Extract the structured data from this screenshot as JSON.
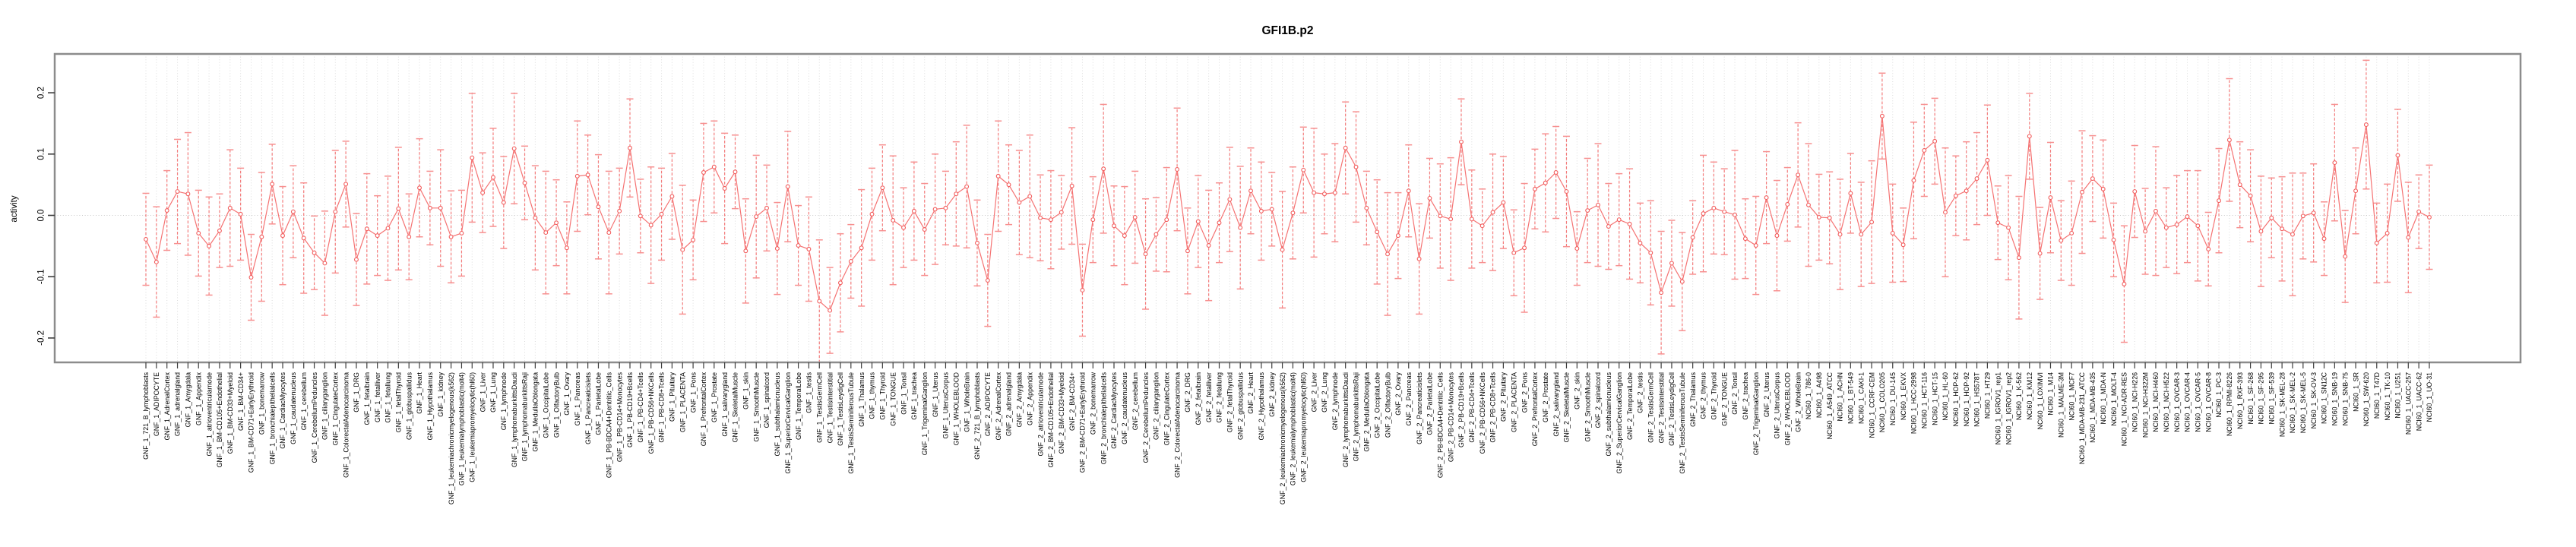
{
  "chart_data": {
    "type": "line",
    "title": "GFI1B.p2",
    "ylabel": "activity",
    "xlabel": "",
    "ylim": [
      -0.24,
      0.26
    ],
    "yticks": [
      0.2,
      0.1,
      0,
      -0.1,
      -0.2
    ],
    "ytick_labels": [
      "0.2",
      "0.1",
      "0.0",
      "-0.1",
      "-0.2"
    ],
    "zero_line": 0,
    "grid": "dotted vertical line per category, dotted horizontal line at 0",
    "legend": "none",
    "marker": "open-circle",
    "error_bars": true,
    "colors": {
      "series_line": "#f57373",
      "marker_stroke": "#f25c5c",
      "error_stem": "#f47c7c",
      "error_cap": "#f79090",
      "grid_line": "#dcdcdc",
      "zero_line": "#c9c9c9",
      "axis_frame": "#8c8c8c",
      "tick_mark": "#3d3d3d",
      "text": "#000000"
    },
    "categories": [
      "GNF_1_721_B_lymphoblasts",
      "GNF_1_ADIPOCYTE",
      "GNF_1_AdrenalCortex",
      "GNF_1_adrenalgland",
      "GNF_1_Amygdala",
      "GNF_1_Appendix",
      "GNF_1_atrioventricularnode",
      "GNF_1_BM-CD105+Endothelial",
      "GNF_1_BM-CD33+Myeloid",
      "GNF_1_BM-CD34+",
      "GNF_1_BM-CD71+EarlyErythroid",
      "GNF_1_bonemarrow",
      "GNF_1_bronchialepithelialcells",
      "GNF_1_CardiacMyocytes",
      "GNF_1_caudatenucleus",
      "GNF_1_cerebellum",
      "GNF_1_CerebellumPeduncles",
      "GNF_1_ciliaryganglion",
      "GNF_1_CingulateCortex",
      "GNF_1_ColorectalAdenocarcinoma",
      "GNF_1_DRG",
      "GNF_1_fetalbrain",
      "GNF_1_fetalliver",
      "GNF_1_fetallung",
      "GNF_1_fetalThyroid",
      "GNF_1_globuspallidus",
      "GNF_1_Heart",
      "GNF_1_Hypothalamus",
      "GNF_1_kidney",
      "GNF_1_leukemiachronicmyelogenous(k562)",
      "GNF_1_leukemialymphoblastic(molt4)",
      "GNF_1_leukemiapromyelocytic(hl60)",
      "GNF_1_Liver",
      "GNF_1_Lung",
      "GNF_1_lymphnode",
      "GNF_1_lymphomaburkittsDaudi",
      "GNF_1_lymphomaburkittsRaji",
      "GNF_1_MedullaOblongata",
      "GNF_1_OccipitalLobe",
      "GNF_1_OlfactoryBulb",
      "GNF_1_Ovary",
      "GNF_1_Pancreas",
      "GNF_1_Pancreaticislets",
      "GNF_1_ParietalLobe",
      "GNF_1_PB-BDCA4+Dentritic_Cells",
      "GNF_1_PB-CD14+Monocytes",
      "GNF_1_PB-CD19+Bcells",
      "GNF_1_PB-CD4+Tcells",
      "GNF_1_PB-CD56+NKCells",
      "GNF_1_PB-CD8+Tcells",
      "GNF_1_Pituitary",
      "GNF_1_PLACENTA",
      "GNF_1_Pons",
      "GNF_1_PrefrontalCortex",
      "GNF_1_Prostate",
      "GNF_1_salivarygland",
      "GNF_1_SkeletalMuscle",
      "GNF_1_skin",
      "GNF_1_SmoothMuscle",
      "GNF_1_spinalcord",
      "GNF_1_subthalamicnucleus",
      "GNF_1_SuperiorCervicalGanglion",
      "GNF_1_TemporalLobe",
      "GNF_1_testis",
      "GNF_1_TestisGermCell",
      "GNF_1_TestisInterstitial",
      "GNF_1_TestisLeydigCell",
      "GNF_1_TestisSeminiferousTubule",
      "GNF_1_Thalamus",
      "GNF_1_thymus",
      "GNF_1_Thyroid",
      "GNF_1_TONGUE",
      "GNF_1_Tonsil",
      "GNF_1_trachea",
      "GNF_1_TrigeminalGanglion",
      "GNF_1_Uterus",
      "GNF_1_UterusCorpus",
      "GNF_1_WHOLEBLOOD",
      "GNF_1_WholeBrain",
      "GNF_2_721_B_lymphoblasts",
      "GNF_2_ADIPOCYTE",
      "GNF_2_AdrenalCortex",
      "GNF_2_adrenalgland",
      "GNF_2_Amygdala",
      "GNF_2_Appendix",
      "GNF_2_atrioventricularnode",
      "GNF_2_BM-CD105+Endothelial",
      "GNF_2_BM-CD33+Myeloid",
      "GNF_2_BM-CD34+",
      "GNF_2_BM-CD71+EarlyErythroid",
      "GNF_2_bonemarrow",
      "GNF_2_bronchialepithelialcells",
      "GNF_2_CardiacMyocytes",
      "GNF_2_caudatenucleus",
      "GNF_2_cerebellum",
      "GNF_2_CerebellumPeduncles",
      "GNF_2_ciliaryganglion",
      "GNF_2_CingulateCortex",
      "GNF_2_ColorectalAdenocarcinoma",
      "GNF_2_DRG",
      "GNF_2_fetalbrain",
      "GNF_2_fetalliver",
      "GNF_2_fetallung",
      "GNF_2_fetalThyroid",
      "GNF_2_globuspallidus",
      "GNF_2_Heart",
      "GNF_2_Hypothalamus",
      "GNF_2_kidney",
      "GNF_2_leukemiachronicmyelogenous(k562)",
      "GNF_2_leukemialymphoblastic(molt4)",
      "GNF_2_leukemiapromyelocytic(hl60)",
      "GNF_2_Liver",
      "GNF_2_Lung",
      "GNF_2_lymphnode",
      "GNF_2_lymphomaburkittsDaudi",
      "GNF_2_lymphomaburkittsRaji",
      "GNF_2_MedullaOblongata",
      "GNF_2_OccipitalLobe",
      "GNF_2_OlfactoryBulb",
      "GNF_2_Ovary",
      "GNF_2_Pancreas",
      "GNF_2_Pancreaticislets",
      "GNF_2_ParietalLobe",
      "GNF_2_PB-BDCA4+Dentritic_Cells",
      "GNF_2_PB-CD14+Monocytes",
      "GNF_2_PB-CD19+Bcells",
      "GNF_2_PB-CD4+Tcells",
      "GNF_2_PB-CD56+NKCells",
      "GNF_2_PB-CD8+Tcells",
      "GNF_2_Pituitary",
      "GNF_2_PLACENTA",
      "GNF_2_Pons",
      "GNF_2_PrefrontalCortex",
      "GNF_2_Prostate",
      "GNF_2_salivarygland",
      "GNF_2_SkeletalMuscle",
      "GNF_2_skin",
      "GNF_2_SmoothMuscle",
      "GNF_2_spinalcord",
      "GNF_2_subthalamicnucleus",
      "GNF_2_SuperiorCervicalGanglion",
      "GNF_2_TemporalLobe",
      "GNF_2_testis",
      "GNF_2_TestisGermCell",
      "GNF_2_TestisInterstitial",
      "GNF_2_TestisLeydigCell",
      "GNF_2_TestisSeminiferousTubule",
      "GNF_2_Thalamus",
      "GNF_2_thymus",
      "GNF_2_Thyroid",
      "GNF_2_TONGUE",
      "GNF_2_Tonsil",
      "GNF_2_trachea",
      "GNF_2_TrigeminalGanglion",
      "GNF_2_Uterus",
      "GNF_2_UterusCorpus",
      "GNF_2_WHOLEBLOOD",
      "GNF_2_WholeBrain",
      "NCI60_1_786-0",
      "NCI60_1_A498",
      "NCI60_1_A549_ATCC",
      "NCI60_1_ACHN",
      "NCI60_1_BT-549",
      "NCI60_1_CAKI-1",
      "NCI60_1_CCRF-CEM",
      "NCI60_1_COLO205",
      "NCI60_1_DU-145",
      "NCI60_1_EKVX",
      "NCI60_1_HCC-2998",
      "NCI60_1_HCT-116",
      "NCI60_1_HCT-15",
      "NCI60_1_HL-60",
      "NCI60_1_HOP-62",
      "NCI60_1_HOP-92",
      "NCI60_1_HS578T",
      "NCI60_1_HT29",
      "NCI60_1_IGROV1_rep1",
      "NCI60_1_IGROV1_rep2",
      "NCI60_1_K-562",
      "NCI60_1_KM12",
      "NCI60_1_LOXIMVI",
      "NCI60_1_M14",
      "NCI60_1_MALME-3M",
      "NCI60_1_MCF7",
      "NCI60_1_MDA-MB-231_ATCC",
      "NCI60_1_MDA-MB-435",
      "NCI60_1_MDA-N",
      "NCI60_1_MOLT-4",
      "NCI60_1_NCI-ADR-RES",
      "NCI60_1_NCI-H226",
      "NCI60_1_NCI-H322M",
      "NCI60_1_NCI-H460",
      "NCI60_1_NCI-H522",
      "NCI60_1_OVCAR-3",
      "NCI60_1_OVCAR-4",
      "NCI60_1_OVCAR-5",
      "NCI60_1_OVCAR-8",
      "NCI60_1_PC-3",
      "NCI60_1_RPMI-8226",
      "NCI60_1_RXF-393",
      "NCI60_1_SF-268",
      "NCI60_1_SF-295",
      "NCI60_1_SF-539",
      "NCI60_1_SK-MEL-28",
      "NCI60_1_SK-MEL-2",
      "NCI60_1_SK-MEL-5",
      "NCI60_1_SK-OV-3",
      "NCI60_1_SN12C",
      "NCI60_1_SNB-19",
      "NCI60_1_SNB-75",
      "NCI60_1_SR",
      "NCI60_1_SW-620",
      "NCI60_1_T47D",
      "NCI60_1_TK-10",
      "NCI60_1_U251",
      "NCI60_1_UACC-257",
      "NCI60_1_UACC-62",
      "NCI60_1_UO-31"
    ],
    "values": [
      -0.039,
      -0.076,
      0.008,
      0.039,
      0.035,
      -0.029,
      -0.05,
      -0.025,
      0.012,
      0.002,
      -0.101,
      -0.035,
      0.051,
      -0.033,
      0.006,
      -0.037,
      -0.061,
      -0.078,
      0.006,
      0.051,
      -0.072,
      -0.022,
      -0.033,
      -0.021,
      0.011,
      -0.035,
      0.045,
      0.012,
      0.012,
      -0.035,
      -0.029,
      0.094,
      0.037,
      0.062,
      0.021,
      0.109,
      0.053,
      -0.004,
      -0.028,
      -0.012,
      -0.053,
      0.064,
      0.066,
      0.014,
      -0.028,
      0.007,
      0.11,
      -0.001,
      -0.016,
      0.002,
      0.031,
      -0.056,
      -0.04,
      0.07,
      0.079,
      0.044,
      0.071,
      -0.058,
      -0.002,
      0.012,
      -0.054,
      0.047,
      -0.049,
      -0.055,
      -0.14,
      -0.155,
      -0.11,
      -0.075,
      -0.053,
      0.002,
      0.045,
      -0.008,
      -0.02,
      0.007,
      -0.023,
      0.01,
      0.012,
      0.035,
      0.047,
      -0.045,
      -0.106,
      0.064,
      0.05,
      0.021,
      0.031,
      -0.004,
      -0.007,
      0.005,
      0.048,
      -0.122,
      -0.007,
      0.076,
      -0.017,
      -0.033,
      -0.003,
      -0.063,
      -0.031,
      -0.007,
      0.075,
      -0.058,
      -0.01,
      -0.049,
      -0.012,
      0.026,
      -0.02,
      0.04,
      0.007,
      0.01,
      -0.056,
      0.004,
      0.074,
      0.037,
      0.035,
      0.037,
      0.11,
      0.079,
      0.012,
      -0.027,
      -0.063,
      -0.033,
      0.04,
      -0.071,
      0.028,
      -0.001,
      -0.006,
      0.12,
      -0.006,
      -0.017,
      0.005,
      0.021,
      -0.061,
      -0.053,
      0.043,
      0.053,
      0.07,
      0.039,
      -0.054,
      0.008,
      0.017,
      -0.018,
      -0.007,
      -0.014,
      -0.045,
      -0.061,
      -0.126,
      -0.078,
      -0.108,
      -0.036,
      0.003,
      0.012,
      0.006,
      0.001,
      -0.038,
      -0.049,
      0.029,
      -0.033,
      0.018,
      0.066,
      0.017,
      -0.003,
      -0.004,
      -0.031,
      0.036,
      -0.031,
      -0.011,
      0.162,
      -0.029,
      -0.048,
      0.057,
      0.106,
      0.121,
      0.005,
      0.032,
      0.04,
      0.06,
      0.09,
      -0.012,
      -0.02,
      -0.069,
      0.129,
      -0.062,
      0.029,
      -0.041,
      -0.029,
      0.038,
      0.06,
      0.043,
      -0.04,
      -0.112,
      0.039,
      -0.026,
      0.007,
      -0.02,
      -0.015,
      -0.002,
      -0.017,
      -0.055,
      0.024,
      0.123,
      0.05,
      0.032,
      -0.026,
      -0.004,
      -0.022,
      -0.031,
      -0.001,
      0.004,
      -0.038,
      0.086,
      -0.067,
      0.04,
      0.148,
      -0.045,
      -0.029,
      0.098,
      -0.036,
      0.006,
      -0.003
    ],
    "errors": [
      0.075,
      0.09,
      0.065,
      0.085,
      0.1,
      0.07,
      0.08,
      0.06,
      0.095,
      0.075,
      0.07,
      0.105,
      0.065,
      0.08,
      0.075,
      0.09,
      0.06,
      0.085,
      0.1,
      0.07,
      0.075,
      0.09,
      0.065,
      0.085,
      0.1,
      0.07,
      0.08,
      0.06,
      0.095,
      0.075,
      0.07,
      0.105,
      0.065,
      0.08,
      0.075,
      0.09,
      0.06,
      0.085,
      0.1,
      0.07,
      0.075,
      0.09,
      0.065,
      0.085,
      0.1,
      0.07,
      0.08,
      0.06,
      0.095,
      0.075,
      0.07,
      0.105,
      0.065,
      0.08,
      0.075,
      0.09,
      0.06,
      0.085,
      0.1,
      0.07,
      0.075,
      0.09,
      0.065,
      0.085,
      0.1,
      0.07,
      0.08,
      0.06,
      0.095,
      0.075,
      0.07,
      0.105,
      0.065,
      0.08,
      0.075,
      0.09,
      0.06,
      0.085,
      0.1,
      0.07,
      0.075,
      0.09,
      0.065,
      0.085,
      0.1,
      0.07,
      0.08,
      0.06,
      0.095,
      0.075,
      0.07,
      0.105,
      0.065,
      0.08,
      0.075,
      0.09,
      0.06,
      0.085,
      0.1,
      0.07,
      0.075,
      0.09,
      0.065,
      0.085,
      0.1,
      0.07,
      0.08,
      0.06,
      0.095,
      0.075,
      0.07,
      0.105,
      0.065,
      0.08,
      0.075,
      0.09,
      0.06,
      0.085,
      0.1,
      0.07,
      0.075,
      0.09,
      0.065,
      0.085,
      0.1,
      0.07,
      0.08,
      0.06,
      0.095,
      0.075,
      0.07,
      0.105,
      0.065,
      0.08,
      0.075,
      0.09,
      0.06,
      0.085,
      0.1,
      0.07,
      0.075,
      0.09,
      0.065,
      0.085,
      0.1,
      0.07,
      0.08,
      0.06,
      0.095,
      0.075,
      0.07,
      0.105,
      0.065,
      0.08,
      0.075,
      0.09,
      0.06,
      0.085,
      0.1,
      0.07,
      0.075,
      0.09,
      0.065,
      0.085,
      0.1,
      0.07,
      0.08,
      0.06,
      0.095,
      0.075,
      0.07,
      0.105,
      0.065,
      0.08,
      0.075,
      0.09,
      0.06,
      0.085,
      0.1,
      0.07,
      0.075,
      0.09,
      0.065,
      0.085,
      0.1,
      0.07,
      0.08,
      0.06,
      0.095,
      0.075,
      0.07,
      0.105,
      0.065,
      0.08,
      0.075,
      0.09,
      0.06,
      0.085,
      0.1,
      0.07,
      0.075,
      0.09,
      0.065,
      0.085,
      0.1,
      0.07,
      0.08,
      0.06,
      0.095,
      0.075,
      0.07,
      0.105,
      0.065,
      0.08,
      0.075,
      0.09,
      0.06,
      0.085
    ]
  }
}
